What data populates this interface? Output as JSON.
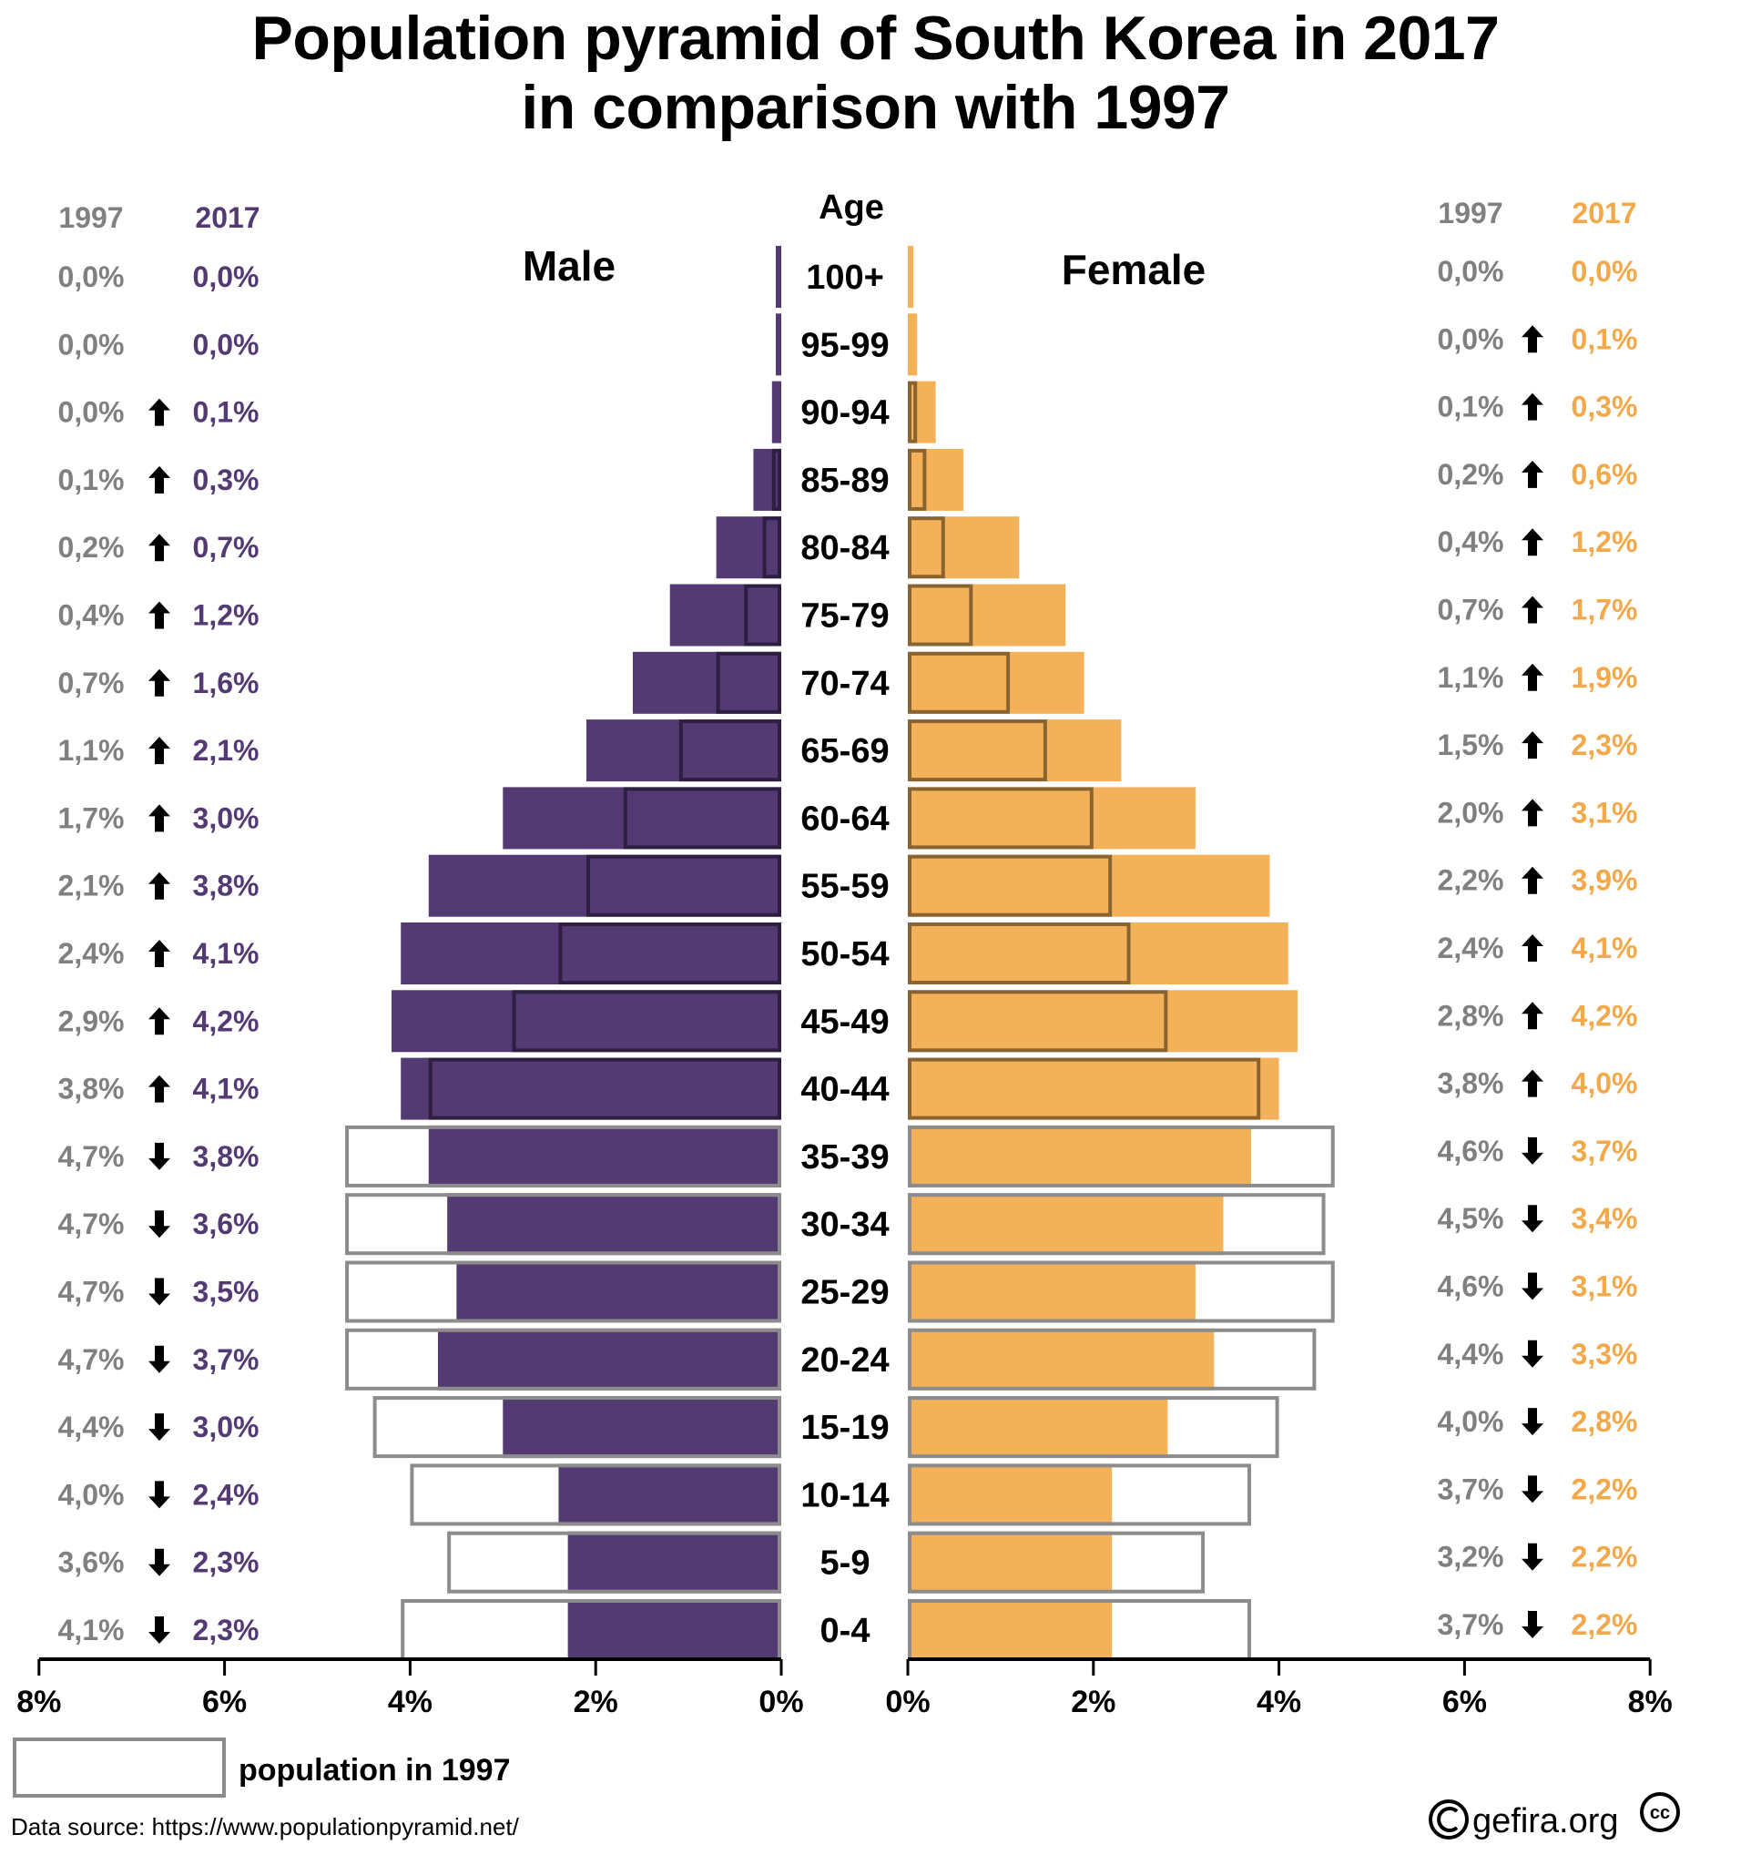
{
  "title": {
    "line1": "Population pyramid of South Korea in 2017",
    "line2": "in comparison with 1997"
  },
  "colors": {
    "male_2017": "#533a73",
    "male_2017_outline": "#2e1f42",
    "female_2017": "#f3b25a",
    "female_2017_outline": "#8a6430",
    "outline_1997": "#8c8c8c",
    "label_1997": "#808080",
    "label_male_2017": "#533a73",
    "label_female_2017": "#f3a84a"
  },
  "chart_data": {
    "type": "bar",
    "subtype": "population-pyramid",
    "title": "Population pyramid of South Korea in 2017 in comparison with 1997",
    "age_axis_label": "Age",
    "left_label": "Male",
    "right_label": "Female",
    "x_unit": "% of population",
    "xlim": [
      0,
      8
    ],
    "x_ticks": [
      "0%",
      "2%",
      "4%",
      "6%",
      "8%"
    ],
    "x_tick_values": [
      0,
      2,
      4,
      6,
      8
    ],
    "grid": false,
    "legend": {
      "label": "population in 1997",
      "placement": "bottom-left"
    },
    "column_headers": {
      "year_1997": "1997",
      "year_2017": "2017"
    },
    "categories": [
      "100+",
      "95-99",
      "90-94",
      "85-89",
      "80-84",
      "75-79",
      "70-74",
      "65-69",
      "60-64",
      "55-59",
      "50-54",
      "45-49",
      "40-44",
      "35-39",
      "30-34",
      "25-29",
      "20-24",
      "15-19",
      "10-14",
      "5-9",
      "0-4"
    ],
    "series": [
      {
        "name": "Male 1997",
        "values": [
          0.0,
          0.0,
          0.0,
          0.1,
          0.2,
          0.4,
          0.7,
          1.1,
          1.7,
          2.1,
          2.4,
          2.9,
          3.8,
          4.7,
          4.7,
          4.7,
          4.7,
          4.4,
          4.0,
          3.6,
          4.1
        ]
      },
      {
        "name": "Male 2017",
        "values": [
          0.0,
          0.0,
          0.1,
          0.3,
          0.7,
          1.2,
          1.6,
          2.1,
          3.0,
          3.8,
          4.1,
          4.2,
          4.1,
          3.8,
          3.6,
          3.5,
          3.7,
          3.0,
          2.4,
          2.3,
          2.3
        ]
      },
      {
        "name": "Female 1997",
        "values": [
          0.0,
          0.0,
          0.1,
          0.2,
          0.4,
          0.7,
          1.1,
          1.5,
          2.0,
          2.2,
          2.4,
          2.8,
          3.8,
          4.6,
          4.5,
          4.6,
          4.4,
          4.0,
          3.7,
          3.2,
          3.7
        ]
      },
      {
        "name": "Female 2017",
        "values": [
          0.0,
          0.1,
          0.3,
          0.6,
          1.2,
          1.7,
          1.9,
          2.3,
          3.1,
          3.9,
          4.1,
          4.2,
          4.0,
          3.7,
          3.4,
          3.1,
          3.3,
          2.8,
          2.2,
          2.2,
          2.2
        ]
      }
    ],
    "male_labels_1997": [
      "0,0%",
      "0,0%",
      "0,0%",
      "0,1%",
      "0,2%",
      "0,4%",
      "0,7%",
      "1,1%",
      "1,7%",
      "2,1%",
      "2,4%",
      "2,9%",
      "3,8%",
      "4,7%",
      "4,7%",
      "4,7%",
      "4,7%",
      "4,4%",
      "4,0%",
      "3,6%",
      "4,1%"
    ],
    "male_labels_2017": [
      "0,0%",
      "0,0%",
      "0,1%",
      "0,3%",
      "0,7%",
      "1,2%",
      "1,6%",
      "2,1%",
      "3,0%",
      "3,8%",
      "4,1%",
      "4,2%",
      "4,1%",
      "3,8%",
      "3,6%",
      "3,5%",
      "3,7%",
      "3,0%",
      "2,4%",
      "2,3%",
      "2,3%"
    ],
    "male_trend": [
      "none",
      "none",
      "up",
      "up",
      "up",
      "up",
      "up",
      "up",
      "up",
      "up",
      "up",
      "up",
      "up",
      "down",
      "down",
      "down",
      "down",
      "down",
      "down",
      "down",
      "down"
    ],
    "female_labels_1997": [
      "0,0%",
      "0,0%",
      "0,1%",
      "0,2%",
      "0,4%",
      "0,7%",
      "1,1%",
      "1,5%",
      "2,0%",
      "2,2%",
      "2,4%",
      "2,8%",
      "3,8%",
      "4,6%",
      "4,5%",
      "4,6%",
      "4,4%",
      "4,0%",
      "3,7%",
      "3,2%",
      "3,7%"
    ],
    "female_labels_2017": [
      "0,0%",
      "0,1%",
      "0,3%",
      "0,6%",
      "1,2%",
      "1,7%",
      "1,9%",
      "2,3%",
      "3,1%",
      "3,9%",
      "4,1%",
      "4,2%",
      "4,0%",
      "3,7%",
      "3,4%",
      "3,1%",
      "3,3%",
      "2,8%",
      "2,2%",
      "2,2%",
      "2,2%"
    ],
    "female_trend": [
      "none",
      "up",
      "up",
      "up",
      "up",
      "up",
      "up",
      "up",
      "up",
      "up",
      "up",
      "up",
      "up",
      "down",
      "down",
      "down",
      "down",
      "down",
      "down",
      "down",
      "down"
    ]
  },
  "footer": {
    "data_source": "Data source: https://www.populationpyramid.net/",
    "credit": "gefira.org",
    "copyright_icon": "copyright-icon",
    "cc_icon": "creative-commons-icon"
  }
}
